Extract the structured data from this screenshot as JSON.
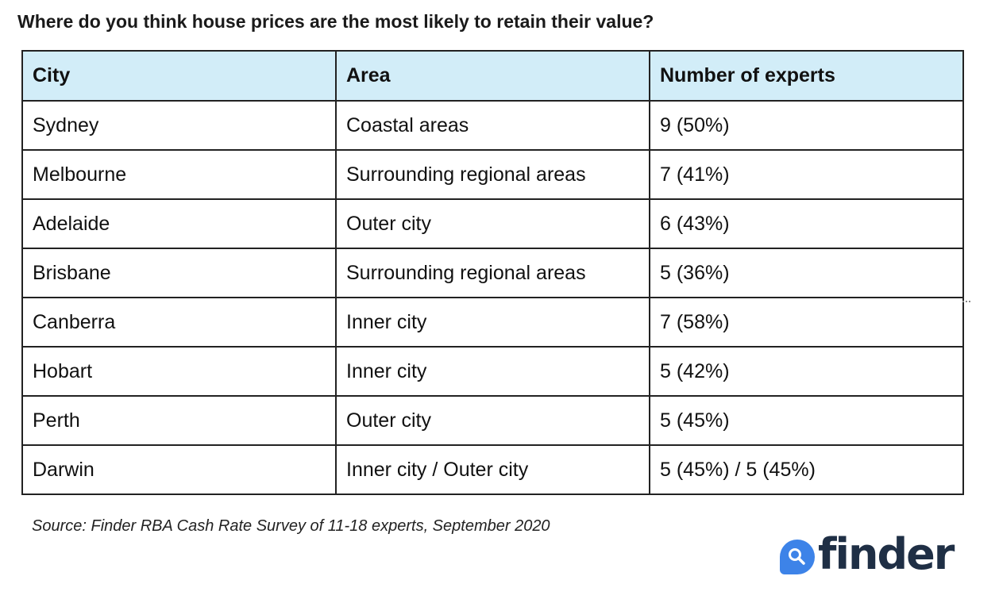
{
  "title": "Where do you think house prices are the most likely to retain their value?",
  "table": {
    "headers": [
      "City",
      "Area",
      "Number of experts"
    ],
    "rows": [
      [
        "Sydney",
        "Coastal areas",
        "9 (50%)"
      ],
      [
        "Melbourne",
        "Surrounding regional areas",
        "7 (41%)"
      ],
      [
        "Adelaide",
        "Outer city",
        "6 (43%)"
      ],
      [
        "Brisbane",
        "Surrounding regional areas",
        "5 (36%)"
      ],
      [
        "Canberra",
        "Inner city",
        "7 (58%)"
      ],
      [
        "Hobart",
        "Inner city",
        "5 (42%)"
      ],
      [
        "Perth",
        "Outer city",
        "5 (45%)"
      ],
      [
        "Darwin",
        "Inner city / Outer city",
        "5 (45%) / 5 (45%)"
      ]
    ]
  },
  "source": "Source: Finder RBA Cash Rate Survey of 11-18 experts, September 2020",
  "logo": {
    "text": "finder",
    "icon": "search-icon",
    "brand_color": "#3d83e8",
    "text_color": "#1f2f45"
  },
  "colors": {
    "header_bg": "#d2edf8",
    "border": "#222222"
  }
}
